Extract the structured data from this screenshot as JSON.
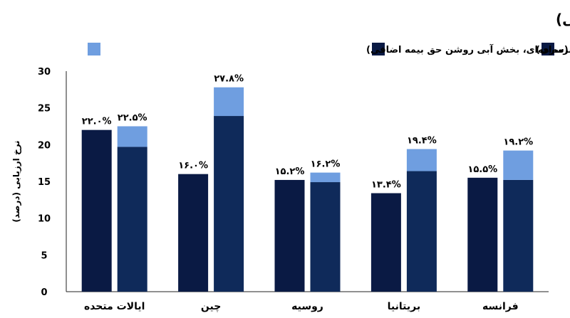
{
  "chart_data": {
    "type": "bar",
    "title": "مقایسه نرخ‌های ارزیابی بودجه سازمان ملل برای اعضای دائم (با حق بیمه اضافی)",
    "ylabel": "نرخ ارزیابی (درصد)",
    "ylim": [
      0,
      30
    ],
    "yticks": [
      "0",
      "5",
      "10",
      "15",
      "20",
      "25",
      "30"
    ],
    "legend_position": "top",
    "grid": false,
    "categories": [
      "ایالات متحده",
      "چین",
      "روسیه",
      "بریتانیا",
      "فرانسه"
    ],
    "series": [
      {
        "name": "بودجه عادی (سرمه‌ای)",
        "color": "#0a1a44",
        "values": [
          22.0,
          16.0,
          15.2,
          13.4,
          15.5
        ],
        "labels": [
          "۲۲.۰%",
          "۱۶.۰%",
          "۱۵.۲%",
          "۱۳.۴%",
          "۱۵.۵%"
        ]
      },
      {
        "name": "بودجه حفظ صلح (سرمه‌ای، بخش آبی روشن حق بیمه اضافی)",
        "color": "#0f2a5a",
        "premium_color": "#6f9ee0",
        "values": [
          22.5,
          27.8,
          16.2,
          19.4,
          19.2
        ],
        "base_values": [
          19.7,
          23.9,
          14.9,
          16.4,
          15.2
        ],
        "labels": [
          "۲۲.۵%",
          "۲۷.۸%",
          "۱۶.۲%",
          "۱۹.۴%",
          "۱۹.۲%"
        ]
      }
    ]
  }
}
